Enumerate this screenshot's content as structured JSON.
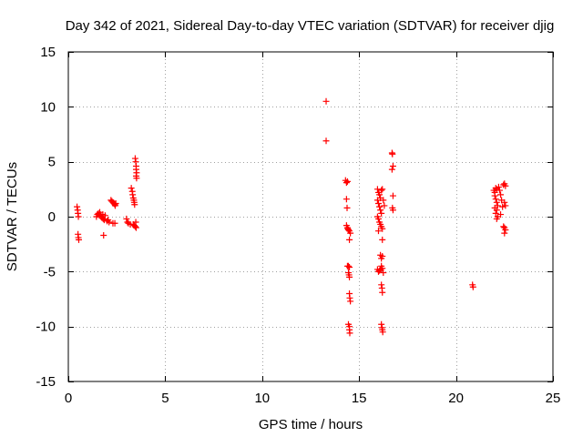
{
  "chart_data": {
    "type": "scatter",
    "title": "Day 342 of 2021, Sidereal Day-to-day VTEC variation (SDTVAR) for receiver djig",
    "xlabel": "GPS time / hours",
    "ylabel": "SDTVAR / TECUs",
    "xlim": [
      0,
      25
    ],
    "ylim": [
      -15,
      15
    ],
    "xticks": [
      0,
      5,
      10,
      15,
      20,
      25
    ],
    "yticks": [
      -15,
      -10,
      -5,
      0,
      5,
      10,
      15
    ],
    "grid": true,
    "marker": "+",
    "color": "#ff0000",
    "series": [
      {
        "name": "SDTVAR",
        "points": [
          [
            0.45,
            0.9
          ],
          [
            0.48,
            0.6
          ],
          [
            0.5,
            0.3
          ],
          [
            0.52,
            0.0
          ],
          [
            0.5,
            -1.6
          ],
          [
            0.52,
            -1.9
          ],
          [
            0.54,
            -2.1
          ],
          [
            1.45,
            0.0
          ],
          [
            1.5,
            0.2
          ],
          [
            1.55,
            0.3
          ],
          [
            1.6,
            0.1
          ],
          [
            1.62,
            0.4
          ],
          [
            1.65,
            0.2
          ],
          [
            1.7,
            0.0
          ],
          [
            1.75,
            -0.1
          ],
          [
            1.78,
            0.2
          ],
          [
            1.8,
            -0.2
          ],
          [
            1.82,
            -1.7
          ],
          [
            1.85,
            -0.3
          ],
          [
            1.9,
            0.1
          ],
          [
            2.0,
            -0.4
          ],
          [
            2.05,
            -0.3
          ],
          [
            2.1,
            -0.5
          ],
          [
            2.2,
            1.5
          ],
          [
            2.25,
            1.4
          ],
          [
            2.3,
            1.3
          ],
          [
            2.35,
            1.2
          ],
          [
            2.4,
            1.1
          ],
          [
            2.42,
            1.0
          ],
          [
            2.45,
            1.2
          ],
          [
            2.3,
            -0.6
          ],
          [
            2.4,
            -0.6
          ],
          [
            3.0,
            -0.2
          ],
          [
            3.05,
            -0.5
          ],
          [
            3.1,
            -0.6
          ],
          [
            3.2,
            -0.7
          ],
          [
            3.25,
            2.6
          ],
          [
            3.3,
            2.3
          ],
          [
            3.32,
            2.0
          ],
          [
            3.35,
            1.7
          ],
          [
            3.38,
            1.5
          ],
          [
            3.4,
            1.3
          ],
          [
            3.42,
            1.1
          ],
          [
            3.35,
            -0.7
          ],
          [
            3.4,
            -0.8
          ],
          [
            3.45,
            -0.9
          ],
          [
            3.5,
            -1.0
          ],
          [
            3.48,
            -0.5
          ],
          [
            3.45,
            5.3
          ],
          [
            3.48,
            5.0
          ],
          [
            3.5,
            4.6
          ],
          [
            3.5,
            4.3
          ],
          [
            3.52,
            4.0
          ],
          [
            3.5,
            3.7
          ],
          [
            3.52,
            3.5
          ],
          [
            13.3,
            10.5
          ],
          [
            13.3,
            6.9
          ],
          [
            14.3,
            3.3
          ],
          [
            14.35,
            3.1
          ],
          [
            14.4,
            3.2
          ],
          [
            14.35,
            1.6
          ],
          [
            14.38,
            0.8
          ],
          [
            14.35,
            -0.8
          ],
          [
            14.4,
            -1.0
          ],
          [
            14.42,
            -1.1
          ],
          [
            14.45,
            -1.2
          ],
          [
            14.5,
            -1.3
          ],
          [
            14.55,
            -1.5
          ],
          [
            14.5,
            -2.1
          ],
          [
            14.4,
            -4.5
          ],
          [
            14.45,
            -4.5
          ],
          [
            14.5,
            -4.6
          ],
          [
            14.45,
            -5.1
          ],
          [
            14.48,
            -5.3
          ],
          [
            14.5,
            -5.5
          ],
          [
            14.5,
            -7.0
          ],
          [
            14.52,
            -7.4
          ],
          [
            14.55,
            -7.7
          ],
          [
            14.45,
            -9.8
          ],
          [
            14.5,
            -10.0
          ],
          [
            14.5,
            -10.3
          ],
          [
            14.52,
            -10.6
          ],
          [
            15.95,
            2.5
          ],
          [
            16.0,
            2.2
          ],
          [
            16.05,
            2.0
          ],
          [
            16.1,
            1.7
          ],
          [
            16.15,
            2.4
          ],
          [
            16.2,
            2.5
          ],
          [
            15.95,
            1.5
          ],
          [
            16.0,
            1.2
          ],
          [
            16.05,
            0.9
          ],
          [
            16.1,
            0.6
          ],
          [
            16.15,
            0.3
          ],
          [
            15.95,
            0.0
          ],
          [
            16.0,
            -0.2
          ],
          [
            16.05,
            -0.5
          ],
          [
            16.1,
            -0.7
          ],
          [
            16.15,
            -0.9
          ],
          [
            16.2,
            -1.1
          ],
          [
            16.0,
            -1.3
          ],
          [
            16.25,
            1.5
          ],
          [
            16.3,
            1.0
          ],
          [
            16.2,
            -2.1
          ],
          [
            16.1,
            -3.5
          ],
          [
            16.15,
            -3.8
          ],
          [
            16.2,
            -3.6
          ],
          [
            15.95,
            -4.8
          ],
          [
            16.0,
            -5.0
          ],
          [
            16.05,
            -4.9
          ],
          [
            16.1,
            -4.8
          ],
          [
            16.15,
            -4.5
          ],
          [
            16.2,
            -4.7
          ],
          [
            16.25,
            -5.1
          ],
          [
            16.15,
            -6.2
          ],
          [
            16.18,
            -6.5
          ],
          [
            16.2,
            -6.9
          ],
          [
            16.15,
            -9.8
          ],
          [
            16.18,
            -10.1
          ],
          [
            16.2,
            -10.3
          ],
          [
            16.22,
            -10.5
          ],
          [
            16.7,
            5.8
          ],
          [
            16.72,
            5.7
          ],
          [
            16.75,
            4.6
          ],
          [
            16.7,
            4.3
          ],
          [
            16.75,
            1.9
          ],
          [
            16.72,
            0.8
          ],
          [
            16.75,
            0.6
          ],
          [
            20.85,
            -6.2
          ],
          [
            20.88,
            -6.4
          ],
          [
            21.95,
            2.4
          ],
          [
            22.0,
            2.2
          ],
          [
            22.05,
            2.6
          ],
          [
            22.1,
            2.5
          ],
          [
            22.0,
            1.9
          ],
          [
            22.05,
            1.6
          ],
          [
            22.1,
            1.3
          ],
          [
            22.15,
            1.0
          ],
          [
            22.0,
            0.8
          ],
          [
            22.1,
            0.6
          ],
          [
            22.05,
            0.3
          ],
          [
            22.15,
            0.0
          ],
          [
            22.1,
            -0.2
          ],
          [
            22.2,
            2.7
          ],
          [
            22.25,
            2.4
          ],
          [
            22.3,
            2.0
          ],
          [
            22.35,
            1.5
          ],
          [
            22.4,
            0.9
          ],
          [
            22.3,
            0.2
          ],
          [
            22.45,
            2.9
          ],
          [
            22.5,
            3.0
          ],
          [
            22.55,
            2.8
          ],
          [
            22.5,
            1.3
          ],
          [
            22.55,
            1.0
          ],
          [
            22.45,
            -0.9
          ],
          [
            22.5,
            -1.0
          ],
          [
            22.55,
            -1.2
          ],
          [
            22.5,
            -1.5
          ]
        ]
      }
    ]
  }
}
